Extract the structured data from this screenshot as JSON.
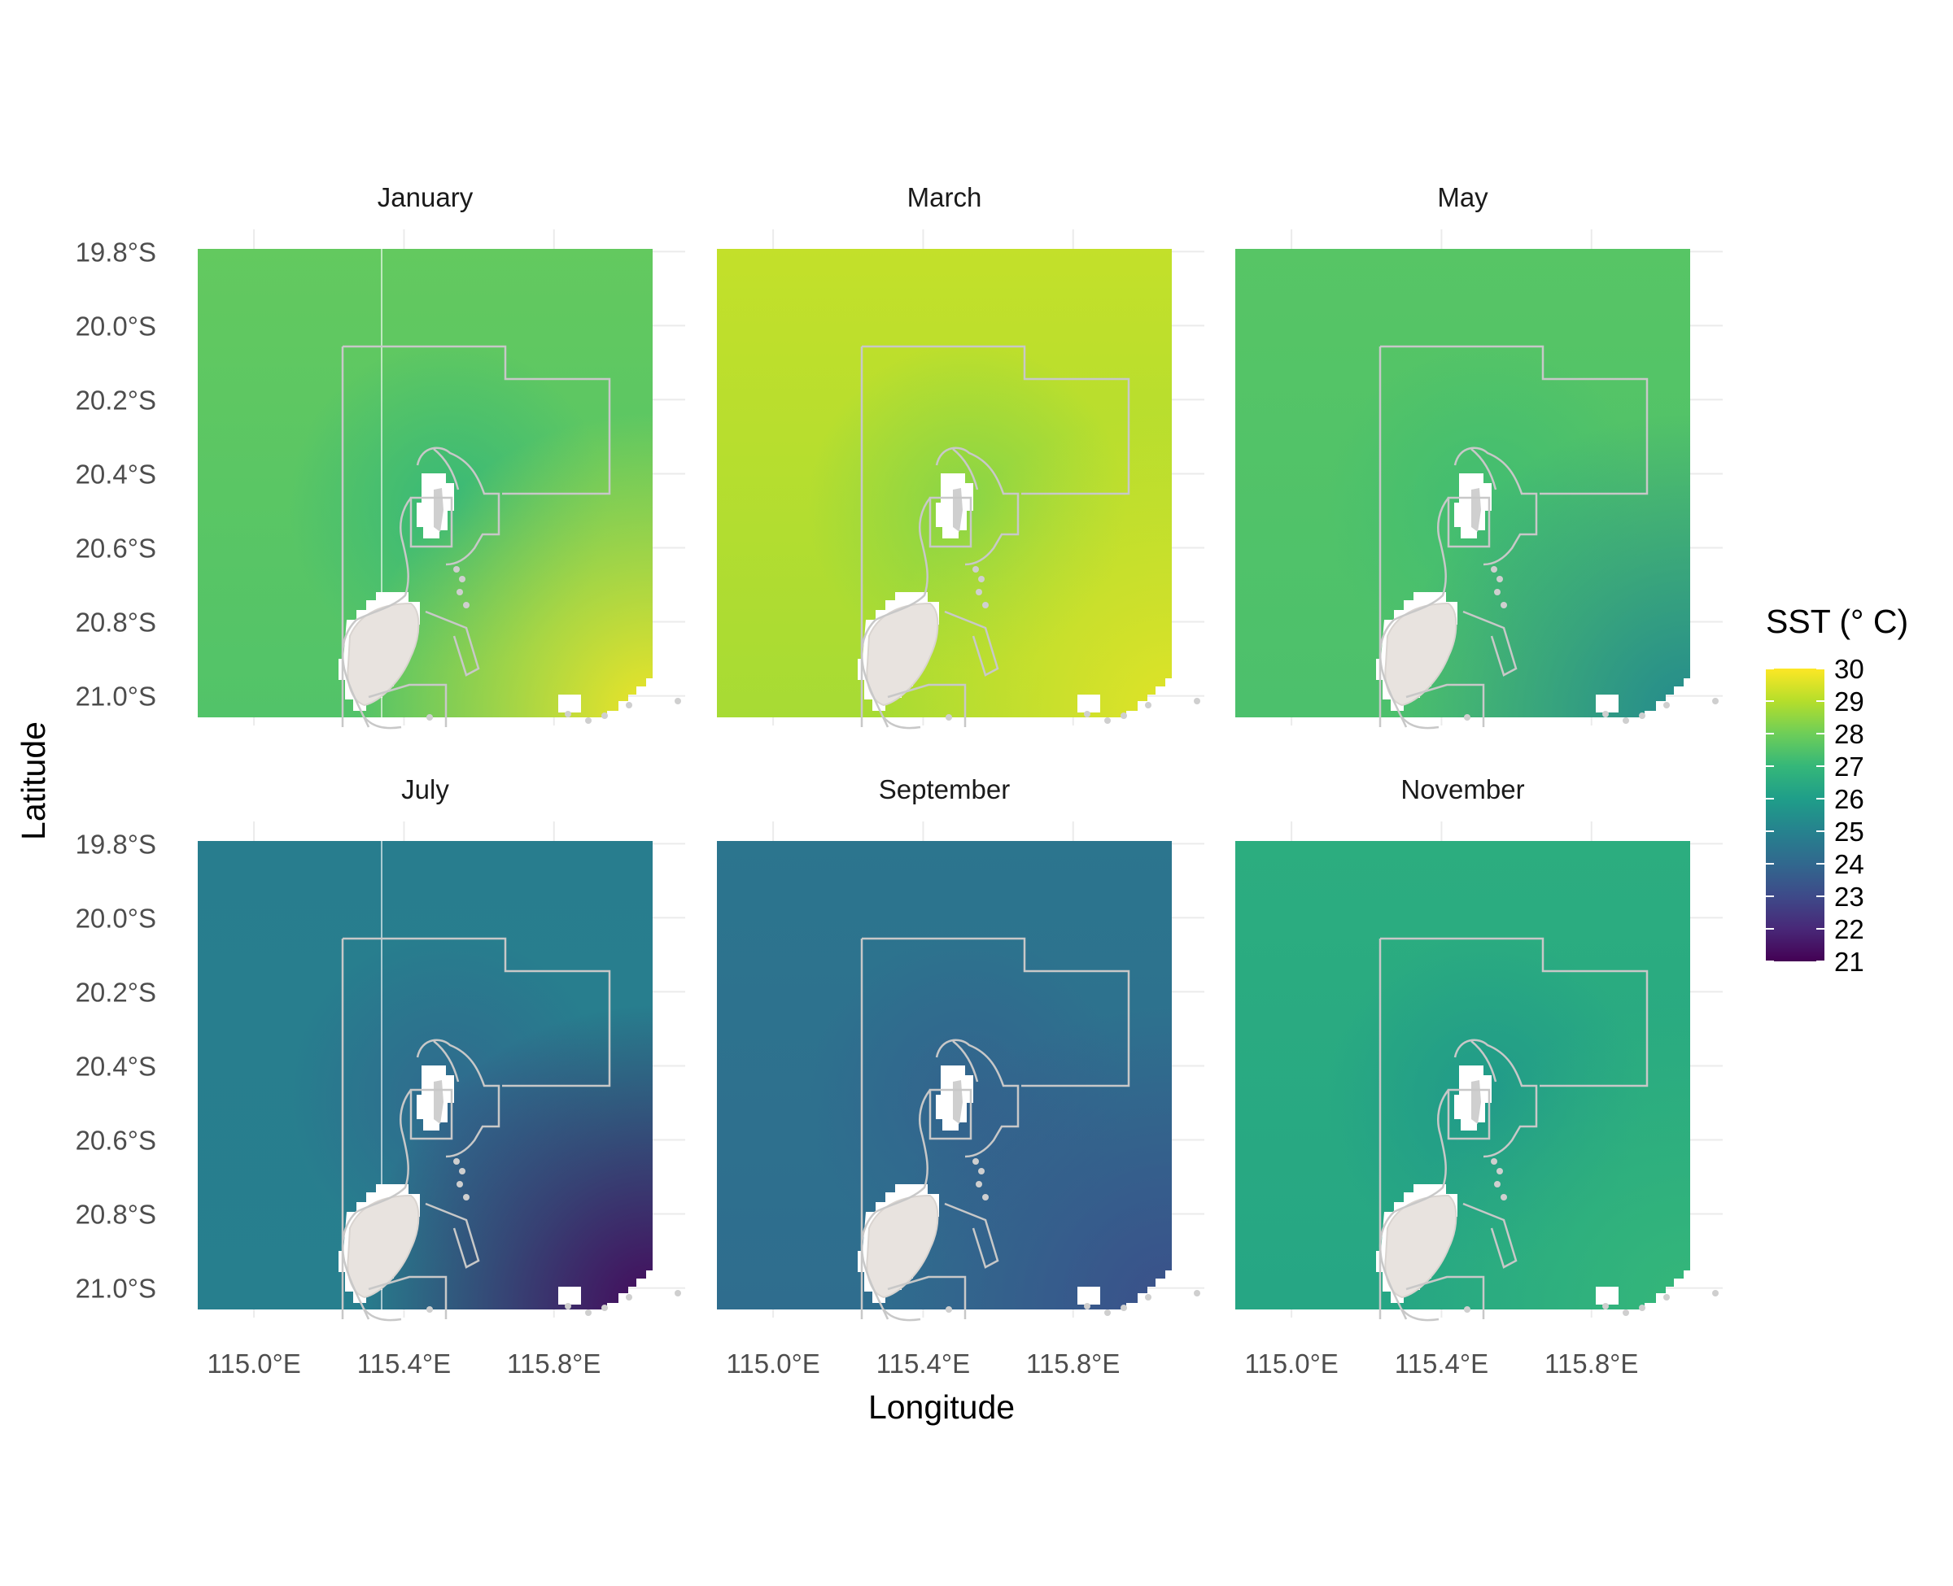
{
  "chart_data": {
    "type": "heatmap",
    "xlabel": "Longitude",
    "ylabel": "Latitude",
    "x_ticks": [
      "115.0°E",
      "115.4°E",
      "115.8°E"
    ],
    "x_tick_values": [
      115.0,
      115.4,
      115.8
    ],
    "y_ticks": [
      "19.8°S",
      "20.0°S",
      "20.2°S",
      "20.4°S",
      "20.6°S",
      "20.8°S",
      "21.0°S"
    ],
    "y_tick_values": [
      19.8,
      20.0,
      20.2,
      20.4,
      20.6,
      20.8,
      21.0
    ],
    "xlim": [
      114.85,
      116.15
    ],
    "ylim": [
      -21.08,
      -19.74
    ],
    "legend": {
      "title": "SST (° C)",
      "placement": "right",
      "ticks": [
        "30",
        "29",
        "28",
        "27",
        "26",
        "25",
        "24",
        "23",
        "22",
        "21"
      ],
      "range": [
        21,
        30
      ]
    },
    "panels": [
      {
        "name": "January",
        "base_sst": 27.5,
        "north_sst": 27.8,
        "center_sst": 27.0,
        "southeast_sst": 29.8
      },
      {
        "name": "March",
        "base_sst": 28.8,
        "north_sst": 29.2,
        "center_sst": 28.3,
        "southeast_sst": 29.6
      },
      {
        "name": "May",
        "base_sst": 27.4,
        "north_sst": 27.6,
        "center_sst": 27.2,
        "southeast_sst": 25.3
      },
      {
        "name": "July",
        "base_sst": 24.9,
        "north_sst": 24.8,
        "center_sst": 24.0,
        "southeast_sst": 21.2
      },
      {
        "name": "September",
        "base_sst": 24.2,
        "north_sst": 24.5,
        "center_sst": 23.8,
        "southeast_sst": 23.2
      },
      {
        "name": "November",
        "base_sst": 26.3,
        "north_sst": 26.6,
        "center_sst": 25.8,
        "southeast_sst": 27.0
      }
    ]
  }
}
